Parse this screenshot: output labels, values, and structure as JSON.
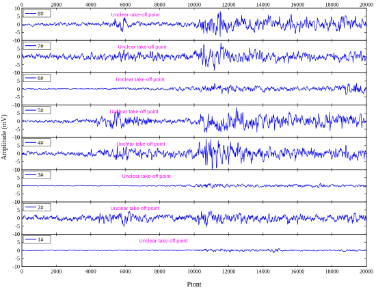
{
  "chart_data": {
    "type": "line",
    "xlabel": "Piont",
    "ylabel": "Amplitude (mV)",
    "xlim": [
      0,
      20000
    ],
    "x_ticks": [
      0,
      2000,
      4000,
      6000,
      8000,
      10000,
      12000,
      14000,
      16000,
      18000,
      20000
    ],
    "ylim": [
      -10,
      10
    ],
    "y_ticks": [
      -10,
      -5,
      0,
      5,
      10
    ],
    "grid": false,
    "legend_position": "top-left of each panel",
    "line_color": "#0000ee",
    "annotation_color": "#ff00ff",
    "series": [
      {
        "name": "8#",
        "annotation": "Unclear take-off point",
        "envelope": {
          "x": [
            0,
            2000,
            4000,
            5200,
            5600,
            5800,
            6200,
            7000,
            8000,
            9000,
            10000,
            10500,
            11000,
            12000,
            13000,
            14000,
            15000,
            16000,
            17000,
            18000,
            19000,
            19500,
            20000
          ],
          "amplitude": [
            1,
            1.5,
            1.5,
            2,
            4,
            7,
            2.5,
            2,
            2,
            2,
            2.5,
            6,
            9,
            6,
            6,
            5,
            5,
            5,
            4,
            5,
            7,
            5,
            3
          ]
        }
      },
      {
        "name": "7#",
        "annotation": "Unclear take-off point",
        "envelope": {
          "x": [
            0,
            2000,
            4000,
            5000,
            5500,
            6000,
            6500,
            7000,
            8000,
            9000,
            10000,
            10800,
            11200,
            12000,
            13000,
            14000,
            15000,
            16000,
            17000,
            18000,
            19000,
            20000
          ],
          "amplitude": [
            2,
            2.5,
            2.5,
            3,
            4,
            5,
            4,
            3,
            3,
            2.5,
            3,
            8,
            8,
            6,
            5,
            4,
            4,
            3,
            3,
            2.5,
            4,
            2.5
          ]
        }
      },
      {
        "name": "6#",
        "annotation": "Unclear take-off point",
        "envelope": {
          "x": [
            0,
            2000,
            4000,
            6000,
            8000,
            9000,
            10000,
            11000,
            12000,
            13000,
            14000,
            15000,
            16000,
            17000,
            18000,
            19000,
            19300,
            20000
          ],
          "amplitude": [
            0.5,
            0.5,
            0.5,
            1,
            1,
            1.5,
            2,
            3,
            3,
            2.5,
            2.5,
            2,
            2,
            2,
            2,
            4,
            6,
            2
          ]
        }
      },
      {
        "name": "5#",
        "annotation": "Unclear take-off point",
        "envelope": {
          "x": [
            0,
            2000,
            4000,
            5000,
            5500,
            6000,
            7000,
            8000,
            9000,
            10000,
            11000,
            12000,
            13000,
            14000,
            15000,
            16000,
            17000,
            18000,
            19000,
            20000
          ],
          "amplitude": [
            1,
            1.5,
            2,
            4,
            8,
            5,
            4,
            2,
            2,
            3,
            8,
            8,
            6,
            6,
            6,
            5,
            5,
            5,
            6,
            3
          ]
        }
      },
      {
        "name": "4#",
        "annotation": "Unclear take-off point",
        "envelope": {
          "x": [
            0,
            2000,
            4000,
            5000,
            6000,
            7000,
            8000,
            9000,
            10000,
            10800,
            11200,
            12000,
            13000,
            14000,
            15000,
            16000,
            17000,
            18000,
            19000,
            20000
          ],
          "amplitude": [
            2,
            1.5,
            2.5,
            3,
            4.5,
            4,
            3,
            2.5,
            4,
            9,
            8,
            7,
            6,
            5,
            4,
            4,
            3.5,
            3,
            5,
            3
          ]
        }
      },
      {
        "name": "3#",
        "annotation": "Unclear take-off point",
        "envelope": {
          "x": [
            0,
            2000,
            4000,
            6000,
            8000,
            10000,
            10800,
            11200,
            12000,
            14000,
            16000,
            17000,
            17300,
            18000,
            20000
          ],
          "amplitude": [
            0.3,
            0.3,
            0.3,
            0.3,
            0.5,
            1,
            2.5,
            2,
            1.5,
            1.3,
            1.2,
            1.2,
            2,
            1,
            1
          ]
        }
      },
      {
        "name": "2#",
        "annotation": "Unclear take-off point",
        "envelope": {
          "x": [
            0,
            2000,
            4000,
            5000,
            5800,
            6500,
            7000,
            8000,
            9000,
            10000,
            10800,
            11200,
            12000,
            13000,
            14000,
            15000,
            16000,
            17000,
            18000,
            19000,
            20000
          ],
          "amplitude": [
            2,
            2.5,
            2.5,
            3,
            6,
            4,
            3,
            2.5,
            2.5,
            3,
            6,
            5,
            4,
            4,
            3.5,
            3,
            3.5,
            3,
            3,
            3.5,
            3
          ]
        }
      },
      {
        "name": "1#",
        "annotation": "Unclear take-off point",
        "envelope": {
          "x": [
            0,
            2000,
            4000,
            6000,
            8000,
            10000,
            11000,
            12000,
            13000,
            14000,
            14800,
            15200,
            16000,
            18000,
            19000,
            20000
          ],
          "amplitude": [
            0.3,
            0.3,
            0.3,
            0.4,
            0.5,
            0.6,
            1.5,
            1.2,
            1,
            0.8,
            2,
            0.8,
            0.6,
            0.6,
            1,
            0.5
          ]
        }
      }
    ]
  }
}
